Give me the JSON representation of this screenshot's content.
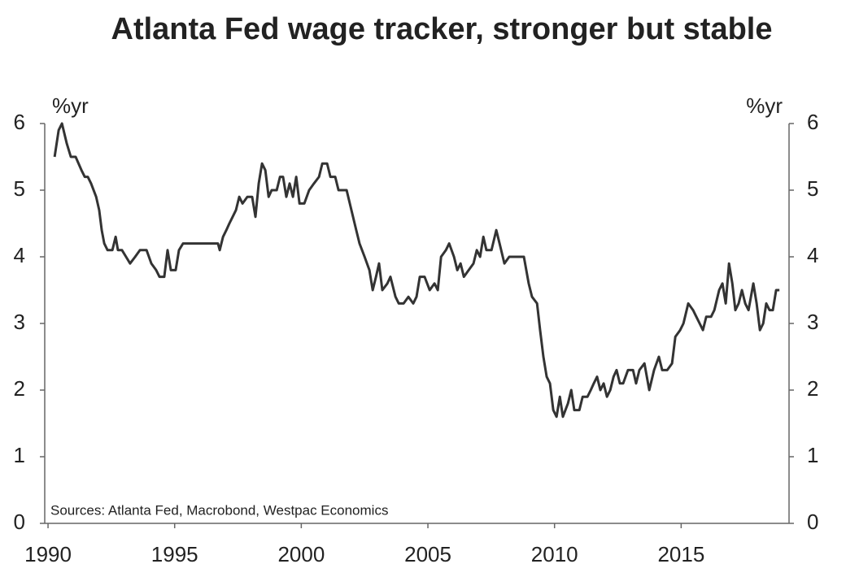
{
  "chart_data": {
    "type": "line",
    "title": "Atlanta Fed wage tracker, stronger but stable",
    "y_label": "%yr",
    "y2_label": "%yr",
    "annotation": "Sources: Atlanta Fed, Macrobond, Westpac Economics",
    "xlim": [
      1989.87,
      2019.26
    ],
    "xticks": [
      1990,
      1995,
      2000,
      2005,
      2010,
      2015
    ],
    "ylim": [
      0,
      6
    ],
    "yticks": [
      0,
      1,
      2,
      3,
      4,
      5,
      6
    ],
    "y2lim": [
      0,
      6
    ],
    "y2ticks": [
      0,
      1,
      2,
      3,
      4,
      5,
      6
    ],
    "grid": false,
    "x": [
      1990.26,
      1990.42,
      1990.55,
      1990.74,
      1990.9,
      1991.09,
      1991.32,
      1991.45,
      1991.57,
      1991.7,
      1991.9,
      1992.02,
      1992.12,
      1992.22,
      1992.35,
      1992.54,
      1992.67,
      1992.76,
      1992.92,
      1993.08,
      1993.24,
      1993.44,
      1993.63,
      1993.89,
      1994.08,
      1994.27,
      1994.4,
      1994.59,
      1994.72,
      1994.85,
      1995.04,
      1995.17,
      1995.33,
      1995.81,
      1996.46,
      1996.71,
      1996.78,
      1996.91,
      1997.04,
      1997.16,
      1997.29,
      1997.42,
      1997.55,
      1997.68,
      1997.87,
      1998.06,
      1998.19,
      1998.32,
      1998.45,
      1998.58,
      1998.71,
      1998.83,
      1999.03,
      1999.16,
      1999.28,
      1999.41,
      1999.54,
      1999.67,
      1999.8,
      1999.93,
      2000.12,
      2000.31,
      2000.5,
      2000.7,
      2000.83,
      2001.02,
      2001.15,
      2001.34,
      2001.47,
      2001.79,
      2001.98,
      2002.17,
      2002.3,
      2002.5,
      2002.69,
      2002.82,
      2002.95,
      2003.07,
      2003.2,
      2003.4,
      2003.52,
      2003.72,
      2003.85,
      2004.04,
      2004.23,
      2004.42,
      2004.55,
      2004.68,
      2004.87,
      2005.07,
      2005.26,
      2005.39,
      2005.52,
      2005.71,
      2005.84,
      2006.03,
      2006.16,
      2006.29,
      2006.42,
      2006.61,
      2006.8,
      2006.93,
      2007.06,
      2007.19,
      2007.31,
      2007.51,
      2007.7,
      2007.83,
      2008.02,
      2008.21,
      2008.34,
      2008.79,
      2008.98,
      2009.11,
      2009.31,
      2009.43,
      2009.56,
      2009.69,
      2009.82,
      2009.95,
      2010.08,
      2010.21,
      2010.33,
      2010.53,
      2010.66,
      2010.78,
      2010.98,
      2011.11,
      2011.3,
      2011.43,
      2011.55,
      2011.68,
      2011.81,
      2011.94,
      2012.07,
      2012.2,
      2012.33,
      2012.45,
      2012.58,
      2012.71,
      2012.9,
      2013.1,
      2013.22,
      2013.35,
      2013.55,
      2013.74,
      2013.93,
      2014.12,
      2014.25,
      2014.45,
      2014.64,
      2014.77,
      2014.96,
      2015.09,
      2015.28,
      2015.47,
      2015.6,
      2015.73,
      2015.86,
      2015.99,
      2016.18,
      2016.31,
      2016.5,
      2016.63,
      2016.76,
      2016.89,
      2017.02,
      2017.14,
      2017.27,
      2017.4,
      2017.53,
      2017.66,
      2017.85,
      2017.98,
      2018.11,
      2018.24,
      2018.36,
      2018.49,
      2018.62,
      2018.75,
      2018.88
    ],
    "series": [
      {
        "name": "Atlanta Fed wage tracker",
        "color": "#333333",
        "values": [
          5.5,
          5.9,
          6.0,
          5.7,
          5.5,
          5.5,
          5.3,
          5.2,
          5.2,
          5.1,
          4.9,
          4.7,
          4.4,
          4.2,
          4.1,
          4.1,
          4.3,
          4.1,
          4.1,
          4.0,
          3.9,
          4.0,
          4.1,
          4.1,
          3.9,
          3.8,
          3.7,
          3.7,
          4.1,
          3.8,
          3.8,
          4.1,
          4.2,
          4.2,
          4.2,
          4.2,
          4.1,
          4.3,
          4.4,
          4.5,
          4.6,
          4.7,
          4.9,
          4.8,
          4.9,
          4.9,
          4.6,
          5.1,
          5.4,
          5.3,
          4.9,
          5.0,
          5.0,
          5.2,
          5.2,
          4.9,
          5.1,
          4.9,
          5.2,
          4.8,
          4.8,
          5.0,
          5.1,
          5.2,
          5.4,
          5.4,
          5.2,
          5.2,
          5.0,
          5.0,
          4.7,
          4.4,
          4.2,
          4.0,
          3.8,
          3.5,
          3.7,
          3.9,
          3.5,
          3.6,
          3.7,
          3.4,
          3.3,
          3.3,
          3.4,
          3.3,
          3.4,
          3.7,
          3.7,
          3.5,
          3.6,
          3.5,
          4.0,
          4.1,
          4.2,
          4.0,
          3.8,
          3.9,
          3.7,
          3.8,
          3.9,
          4.1,
          4.0,
          4.3,
          4.1,
          4.1,
          4.4,
          4.2,
          3.9,
          4.0,
          4.0,
          4.0,
          3.6,
          3.4,
          3.3,
          2.9,
          2.5,
          2.2,
          2.1,
          1.7,
          1.6,
          1.9,
          1.6,
          1.8,
          2.0,
          1.7,
          1.7,
          1.9,
          1.9,
          2.0,
          2.1,
          2.2,
          2.0,
          2.1,
          1.9,
          2.0,
          2.2,
          2.3,
          2.1,
          2.1,
          2.3,
          2.3,
          2.1,
          2.3,
          2.4,
          2.0,
          2.3,
          2.5,
          2.3,
          2.3,
          2.4,
          2.8,
          2.9,
          3.0,
          3.3,
          3.2,
          3.1,
          3.0,
          2.9,
          3.1,
          3.1,
          3.2,
          3.5,
          3.6,
          3.3,
          3.9,
          3.6,
          3.2,
          3.3,
          3.5,
          3.3,
          3.2,
          3.6,
          3.3,
          2.9,
          3.0,
          3.3,
          3.2,
          3.2,
          3.5,
          3.5
        ]
      }
    ]
  }
}
